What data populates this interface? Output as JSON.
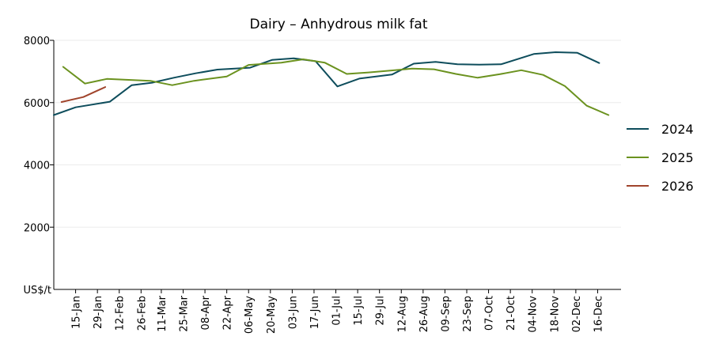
{
  "chart_data": {
    "type": "line",
    "title": "Dairy – Anhydrous milk fat",
    "ylabel": "US$/t",
    "xlabel": "",
    "ylim": [
      0,
      8000
    ],
    "yticks": [
      2000,
      4000,
      6000,
      8000
    ],
    "grid": true,
    "legend_position": "right",
    "x_ticks": [
      "15-Jan",
      "29-Jan",
      "12-Feb",
      "26-Feb",
      "11-Mar",
      "25-Mar",
      "08-Apr",
      "22-Apr",
      "06-May",
      "20-May",
      "03-Jun",
      "17-Jun",
      "01-Jul",
      "15-Jul",
      "29-Jul",
      "12-Aug",
      "26-Aug",
      "09-Sep",
      "23-Sep",
      "07-Oct",
      "21-Oct",
      "04-Nov",
      "18-Nov",
      "02-Dec",
      "16-Dec"
    ],
    "series": [
      {
        "name": "2024",
        "color": "#0e4d5c",
        "x": [
          "01-Jan",
          "15-Jan",
          "06-Feb",
          "20-Feb",
          "05-Mar",
          "19-Mar",
          "02-Apr",
          "16-Apr",
          "07-May",
          "21-May",
          "04-Jun",
          "18-Jun",
          "02-Jul",
          "16-Jul",
          "06-Aug",
          "20-Aug",
          "03-Sep",
          "17-Sep",
          "01-Oct",
          "15-Oct",
          "05-Nov",
          "19-Nov",
          "03-Dec",
          "17-Dec"
        ],
        "values": [
          5600,
          5850,
          6030,
          6560,
          6640,
          6800,
          6940,
          7060,
          7120,
          7370,
          7420,
          7330,
          6520,
          6770,
          6900,
          7250,
          7310,
          7230,
          7220,
          7230,
          7560,
          7620,
          7600,
          7270
        ]
      },
      {
        "name": "2025",
        "color": "#6b921f",
        "x": [
          "07-Jan",
          "21-Jan",
          "04-Feb",
          "04-Mar",
          "18-Mar",
          "01-Apr",
          "22-Apr",
          "06-May",
          "27-May",
          "10-Jun",
          "24-Jun",
          "08-Jul",
          "22-Jul",
          "05-Aug",
          "19-Aug",
          "02-Sep",
          "16-Sep",
          "30-Sep",
          "14-Oct",
          "28-Oct",
          "11-Nov",
          "25-Nov",
          "09-Dec",
          "23-Dec"
        ],
        "values": [
          7150,
          6610,
          6760,
          6700,
          6560,
          6700,
          6840,
          7210,
          7280,
          7390,
          7280,
          6920,
          6970,
          7030,
          7090,
          7070,
          6920,
          6800,
          6910,
          7040,
          6890,
          6530,
          5900,
          5600
        ]
      },
      {
        "name": "2026",
        "color": "#a0442c",
        "x": [
          "06-Jan",
          "20-Jan",
          "03-Feb"
        ],
        "values": [
          6020,
          6180,
          6500
        ]
      }
    ]
  }
}
